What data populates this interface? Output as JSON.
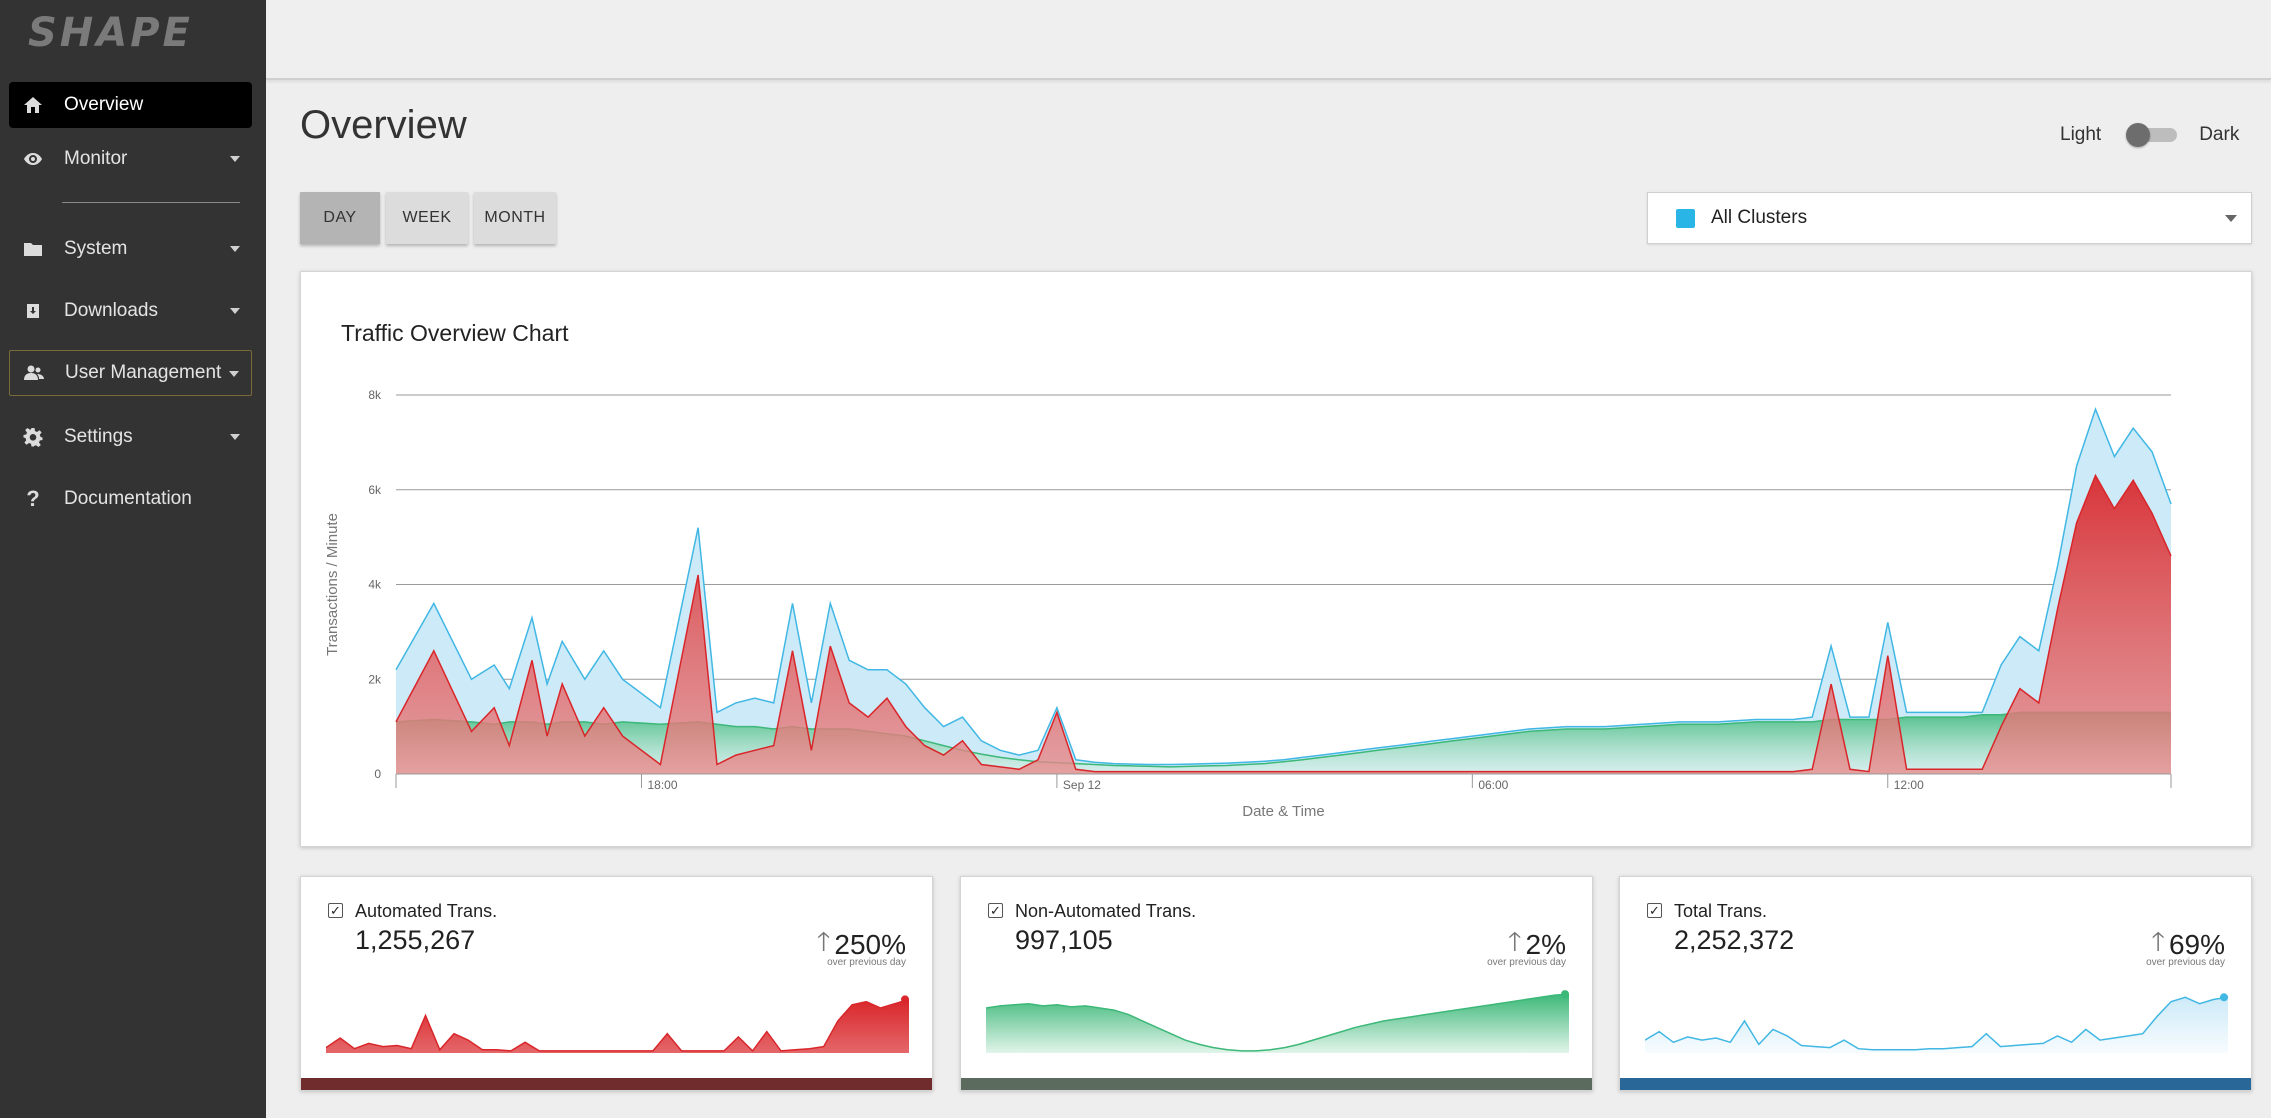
{
  "brand": {
    "logo_text": "SHAPE"
  },
  "sidebar": {
    "items": [
      {
        "label": "Overview",
        "icon": "home-icon",
        "active": true,
        "has_caret": false
      },
      {
        "label": "Monitor",
        "icon": "eye-icon",
        "has_caret": true
      },
      {
        "label": "System",
        "icon": "folder-icon",
        "has_caret": true
      },
      {
        "label": "Downloads",
        "icon": "download-icon",
        "has_caret": true
      },
      {
        "label": "User Management",
        "icon": "users-icon",
        "has_caret": true,
        "outlined": true
      },
      {
        "label": "Settings",
        "icon": "gear-icon",
        "has_caret": true
      },
      {
        "label": "Documentation",
        "icon": "question-icon",
        "has_caret": false
      }
    ]
  },
  "page": {
    "title": "Overview"
  },
  "theme_toggle": {
    "light_label": "Light",
    "dark_label": "Dark",
    "mode": "Light"
  },
  "range_buttons": [
    {
      "label": "DAY",
      "active": true
    },
    {
      "label": "WEEK",
      "active": false
    },
    {
      "label": "MONTH",
      "active": false
    }
  ],
  "cluster_select": {
    "value": "All Clusters",
    "swatch_color": "#29b6e6"
  },
  "main_chart": {
    "title": "Traffic Overview Chart"
  },
  "chart_data": {
    "type": "area",
    "title": "Traffic Overview Chart",
    "xlabel": "Date & Time",
    "ylabel": "Transactions / Minute",
    "ylim": [
      0,
      8000
    ],
    "yticks": [
      "0",
      "2k",
      "4k",
      "6k",
      "8k"
    ],
    "xticks": [
      "18:00",
      "Sep 12",
      "06:00",
      "12:00"
    ],
    "x_hours": [
      0,
      1,
      2,
      2.6,
      3,
      3.6,
      4,
      4.4,
      5,
      5.5,
      6,
      7,
      8,
      8.5,
      9,
      9.5,
      10,
      10.5,
      11,
      11.5,
      12,
      12.5,
      13,
      13.5,
      14,
      14.5,
      15,
      15.5,
      16,
      16.5,
      17,
      17.5,
      18,
      18.5,
      19,
      19.5,
      20,
      20.5,
      21,
      21.5,
      22,
      22.5,
      23,
      23.5,
      24,
      24.5,
      25,
      25.5,
      26,
      26.5,
      27,
      27.5,
      28,
      28.5,
      29,
      29.5,
      30,
      31,
      32,
      33,
      34,
      35,
      36,
      37,
      37.5,
      38,
      38.5,
      39,
      39.5,
      40,
      40.5,
      41,
      41.5,
      42,
      42.5,
      43,
      43.5,
      44,
      44.5,
      45,
      45.5,
      46,
      46.5,
      47
    ],
    "series": [
      {
        "name": "Automated Trans.",
        "color": "#d9262a",
        "fill": "#d9262a",
        "values": [
          1100,
          2600,
          900,
          1400,
          600,
          2400,
          800,
          1900,
          800,
          1400,
          800,
          200,
          4200,
          200,
          400,
          500,
          600,
          2600,
          500,
          2700,
          1500,
          1200,
          1600,
          1000,
          600,
          400,
          700,
          200,
          150,
          100,
          300,
          1300,
          100,
          50,
          50,
          50,
          50,
          50,
          50,
          50,
          50,
          50,
          50,
          50,
          50,
          50,
          50,
          50,
          50,
          50,
          50,
          50,
          50,
          50,
          50,
          50,
          50,
          50,
          50,
          50,
          50,
          50,
          50,
          50,
          100,
          1900,
          100,
          50,
          2500,
          100,
          100,
          100,
          100,
          100,
          1000,
          1800,
          1500,
          3500,
          5300,
          6300,
          5600,
          6200,
          5500,
          4600
        ]
      },
      {
        "name": "Non-Automated Trans.",
        "color": "#3cb878",
        "fill": "#3cb878",
        "values": [
          1100,
          1150,
          1100,
          1050,
          1100,
          1100,
          1050,
          1100,
          1100,
          1050,
          1100,
          1050,
          1100,
          1050,
          1000,
          1000,
          950,
          1000,
          950,
          950,
          950,
          900,
          850,
          800,
          700,
          600,
          500,
          420,
          350,
          300,
          260,
          240,
          220,
          200,
          180,
          170,
          160,
          150,
          160,
          170,
          180,
          200,
          220,
          260,
          300,
          350,
          400,
          450,
          500,
          550,
          600,
          650,
          700,
          750,
          800,
          850,
          900,
          950,
          950,
          1000,
          1050,
          1050,
          1100,
          1100,
          1100,
          1150,
          1150,
          1150,
          1150,
          1200,
          1200,
          1200,
          1200,
          1250,
          1250,
          1300,
          1300,
          1300,
          1300,
          1300,
          1300,
          1300,
          1300,
          1300
        ]
      },
      {
        "name": "Total Trans.",
        "color": "#41b7e4",
        "fill": "#cdeaf8",
        "values": [
          2200,
          3600,
          2000,
          2300,
          1800,
          3300,
          1900,
          2800,
          2000,
          2600,
          2000,
          1400,
          5200,
          1300,
          1500,
          1600,
          1500,
          3600,
          1500,
          3600,
          2400,
          2200,
          2200,
          1900,
          1400,
          1000,
          1200,
          700,
          500,
          400,
          500,
          1400,
          300,
          250,
          220,
          210,
          200,
          200,
          210,
          220,
          230,
          250,
          270,
          300,
          350,
          400,
          450,
          500,
          550,
          600,
          650,
          700,
          750,
          800,
          850,
          900,
          950,
          1000,
          1000,
          1050,
          1100,
          1100,
          1150,
          1150,
          1200,
          2700,
          1200,
          1200,
          3200,
          1300,
          1300,
          1300,
          1300,
          1300,
          2300,
          2900,
          2600,
          4400,
          6500,
          7700,
          6700,
          7300,
          6800,
          5700
        ]
      }
    ]
  },
  "stat_cards": [
    {
      "label": "Automated Trans.",
      "value": "1,255,267",
      "change": "250%",
      "sub": "over previous day",
      "checked": true,
      "color": "#d9262a",
      "fill": "#d9262a",
      "bar_color": "#702b2d",
      "spark": [
        5,
        14,
        4,
        9,
        6,
        7,
        4,
        35,
        3,
        18,
        12,
        3,
        3,
        2,
        10,
        2,
        2,
        2,
        2,
        2,
        2,
        2,
        2,
        2,
        18,
        2,
        2,
        2,
        2,
        15,
        2,
        20,
        2,
        3,
        4,
        6,
        30,
        45,
        48,
        42,
        46,
        50
      ]
    },
    {
      "label": "Non-Automated Trans.",
      "value": "997,105",
      "change": "2%",
      "sub": "over previous day",
      "checked": true,
      "color": "#3cb878",
      "fill": "#3cb878",
      "bar_color": "#5b6c5e",
      "spark": [
        42,
        44,
        45,
        46,
        44,
        45,
        43,
        44,
        42,
        40,
        36,
        30,
        24,
        18,
        12,
        8,
        5,
        3,
        2,
        2,
        3,
        5,
        8,
        12,
        16,
        20,
        24,
        27,
        30,
        32,
        34,
        36,
        38,
        40,
        42,
        44,
        46,
        48,
        50,
        52,
        54,
        55
      ]
    },
    {
      "label": "Total Trans.",
      "value": "2,252,372",
      "change": "69%",
      "sub": "over previous day",
      "checked": true,
      "color": "#41b7e4",
      "fill": "#cdeaf8",
      "bar_color": "#2a6799",
      "spark": [
        12,
        20,
        10,
        15,
        12,
        14,
        10,
        30,
        8,
        22,
        16,
        7,
        6,
        5,
        12,
        4,
        3,
        3,
        3,
        3,
        4,
        4,
        5,
        6,
        18,
        6,
        7,
        8,
        9,
        16,
        10,
        22,
        12,
        14,
        16,
        18,
        34,
        48,
        52,
        46,
        50,
        52
      ]
    }
  ]
}
